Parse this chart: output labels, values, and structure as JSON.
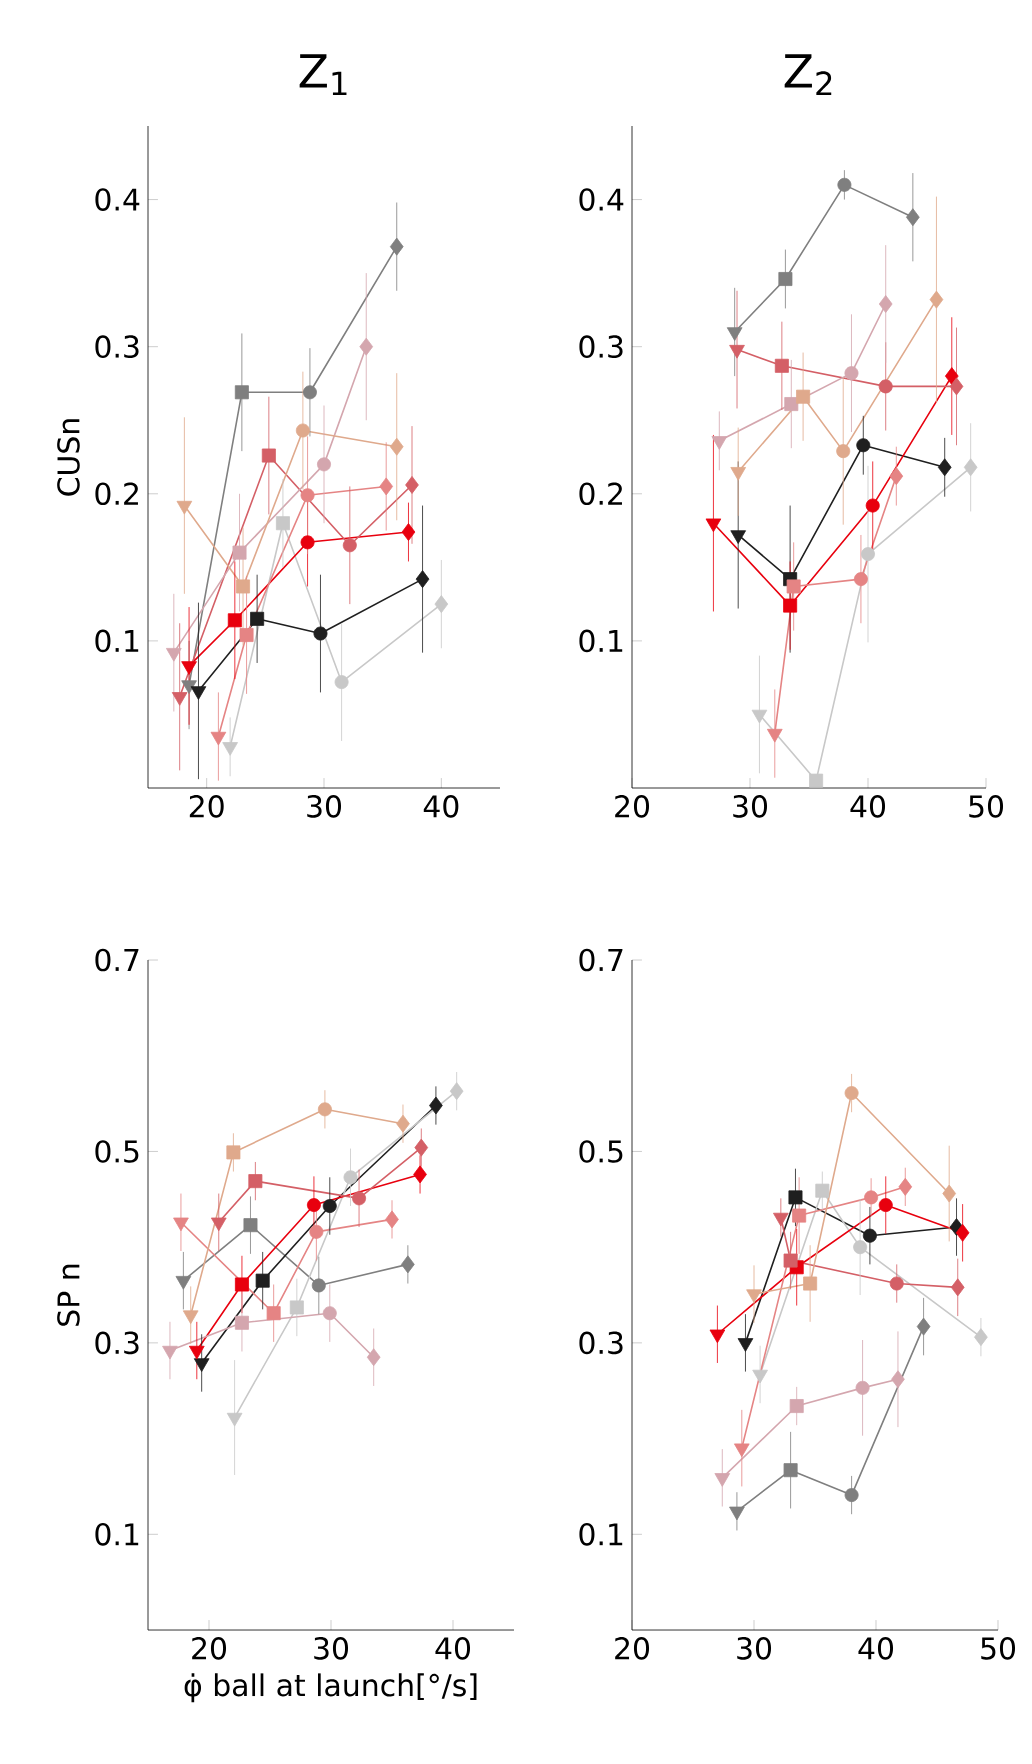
{
  "chart_data": [
    {
      "type": "line",
      "title": "Z$_{1}$",
      "ylabel": "CUSn",
      "xlim": [
        15,
        45
      ],
      "ylim": [
        0,
        0.45
      ],
      "xticks": [
        20,
        30,
        40
      ],
      "yticks": [
        0.1,
        0.2,
        0.3,
        0.4
      ],
      "series": [
        {
          "type": "line",
          "color": "#7f7f7f",
          "x": [
            18.5,
            23.0,
            28.8,
            36.2
          ],
          "values": [
            0.07,
            0.269,
            0.269,
            0.368
          ]
        },
        {
          "type": "line",
          "color": "#1f1f1f",
          "x": [
            19.3,
            24.3,
            29.7,
            38.4
          ],
          "values": [
            0.066,
            0.115,
            0.105,
            0.142
          ]
        },
        {
          "type": "line",
          "color": "#c8c8c8",
          "x": [
            22,
            26.5,
            31.5,
            40
          ],
          "values": [
            0.028,
            0.18,
            0.072,
            0.125
          ]
        },
        {
          "type": "line",
          "color": "#e8000e",
          "x": [
            18.5,
            22.4,
            28.6,
            37.2
          ],
          "values": [
            0.083,
            0.114,
            0.167,
            0.174
          ]
        },
        {
          "type": "line",
          "color": "#d45f66",
          "x": [
            17.7,
            25.3,
            32.2,
            37.5
          ],
          "values": [
            0.062,
            0.226,
            0.165,
            0.206
          ]
        },
        {
          "type": "line",
          "color": "#e58484",
          "x": [
            21,
            23.4,
            28.6,
            35.3
          ],
          "values": [
            0.035,
            0.104,
            0.199,
            0.205
          ]
        },
        {
          "type": "line",
          "color": "#d4a6ae",
          "x": [
            17.2,
            22.8,
            30,
            33.6
          ],
          "values": [
            0.092,
            0.16,
            0.22,
            0.3
          ]
        },
        {
          "type": "line",
          "color": "#dfa98c",
          "x": [
            18.1,
            23.1,
            28.2,
            36.2
          ],
          "values": [
            0.192,
            0.137,
            0.243,
            0.232
          ]
        },
        {
          "type": "scatter",
          "marker": "triangle",
          "x": [
            18.5,
            19.3,
            22,
            18.5,
            17.7,
            21,
            17.2,
            18.1
          ],
          "values": [
            0.07,
            0.066,
            0.028,
            0.083,
            0.062,
            0.035,
            0.092,
            0.192
          ],
          "colors": [
            "#7f7f7f",
            "#1f1f1f",
            "#c8c8c8",
            "#e8000e",
            "#d45f66",
            "#e58484",
            "#d4a6ae",
            "#dfa98c"
          ],
          "errors": [
            0.03,
            0.06,
            0.02,
            0.04,
            0.05,
            0.03,
            0.04,
            0.06
          ]
        },
        {
          "type": "scatter",
          "marker": "square",
          "x": [
            23.0,
            24.3,
            26.5,
            22.4,
            25.3,
            23.4,
            22.8,
            23.1
          ],
          "values": [
            0.269,
            0.115,
            0.18,
            0.114,
            0.226,
            0.104,
            0.16,
            0.137
          ],
          "colors": [
            "#7f7f7f",
            "#1f1f1f",
            "#c8c8c8",
            "#e8000e",
            "#d45f66",
            "#e58484",
            "#d4a6ae",
            "#dfa98c"
          ],
          "errors": [
            0.04,
            0.03,
            0.03,
            0.04,
            0.04,
            0.04,
            0.04,
            0.04
          ]
        },
        {
          "type": "scatter",
          "marker": "circle",
          "x": [
            28.8,
            29.7,
            31.5,
            28.6,
            32.2,
            28.6,
            30,
            28.2
          ],
          "values": [
            0.269,
            0.105,
            0.072,
            0.167,
            0.165,
            0.199,
            0.22,
            0.243
          ],
          "colors": [
            "#7f7f7f",
            "#1f1f1f",
            "#c8c8c8",
            "#e8000e",
            "#d45f66",
            "#e58484",
            "#d4a6ae",
            "#dfa98c"
          ],
          "errors": [
            0.03,
            0.04,
            0.04,
            0.03,
            0.04,
            0.04,
            0.04,
            0.04
          ]
        },
        {
          "type": "scatter",
          "marker": "diamond",
          "x": [
            36.2,
            38.4,
            40,
            37.2,
            37.5,
            35.3,
            33.6,
            36.2
          ],
          "values": [
            0.368,
            0.142,
            0.125,
            0.174,
            0.206,
            0.205,
            0.3,
            0.232
          ],
          "colors": [
            "#7f7f7f",
            "#1f1f1f",
            "#c8c8c8",
            "#e8000e",
            "#d45f66",
            "#e58484",
            "#d4a6ae",
            "#dfa98c"
          ],
          "errors": [
            0.03,
            0.05,
            0.03,
            0.02,
            0.04,
            0.03,
            0.05,
            0.05
          ]
        }
      ]
    },
    {
      "type": "line",
      "title": "Z$_{2}$",
      "xlim": [
        20,
        50
      ],
      "ylim": [
        0,
        0.45
      ],
      "xticks": [
        20,
        30,
        40,
        50
      ],
      "yticks": [
        0.1,
        0.2,
        0.3,
        0.4
      ],
      "series": [
        {
          "type": "line",
          "color": "#7f7f7f",
          "x": [
            28.7,
            33,
            38,
            43.8
          ],
          "values": [
            0.31,
            0.346,
            0.41,
            0.388
          ]
        },
        {
          "type": "line",
          "color": "#1f1f1f",
          "x": [
            29,
            33.4,
            39.6,
            46.5
          ],
          "values": [
            0.172,
            0.142,
            0.233,
            0.218
          ]
        },
        {
          "type": "line",
          "color": "#c8c8c8",
          "x": [
            30.8,
            35.6,
            40,
            48.7
          ],
          "values": [
            0.05,
            0.005,
            0.159,
            0.218
          ]
        },
        {
          "type": "line",
          "color": "#e8000e",
          "x": [
            26.9,
            33.4,
            40.4,
            47.1
          ],
          "values": [
            0.18,
            0.124,
            0.192,
            0.28
          ]
        },
        {
          "type": "line",
          "color": "#d45f66",
          "x": [
            28.9,
            32.7,
            41.5,
            47.5
          ],
          "values": [
            0.298,
            0.287,
            0.273,
            0.273
          ]
        },
        {
          "type": "line",
          "color": "#e58484",
          "x": [
            32.1,
            33.7,
            39.4,
            42.4
          ],
          "values": [
            0.037,
            0.137,
            0.142,
            0.212
          ]
        },
        {
          "type": "line",
          "color": "#d4a6ae",
          "x": [
            27.4,
            33.5,
            38.6,
            41.5
          ],
          "values": [
            0.236,
            0.261,
            0.282,
            0.329
          ]
        },
        {
          "type": "line",
          "color": "#dfa98c",
          "x": [
            29,
            34.5,
            37.9,
            45.8
          ],
          "values": [
            0.215,
            0.266,
            0.229,
            0.332
          ]
        },
        {
          "type": "scatter",
          "marker": "triangle",
          "x": [
            28.7,
            29,
            30.8,
            26.9,
            28.9,
            32.1,
            27.4,
            29
          ],
          "values": [
            0.31,
            0.172,
            0.05,
            0.18,
            0.298,
            0.037,
            0.236,
            0.215
          ],
          "colors": [
            "#7f7f7f",
            "#1f1f1f",
            "#c8c8c8",
            "#e8000e",
            "#d45f66",
            "#e58484",
            "#d4a6ae",
            "#dfa98c"
          ],
          "errors": [
            0.03,
            0.05,
            0.04,
            0.06,
            0.04,
            0.03,
            0.02,
            0.03
          ]
        },
        {
          "type": "scatter",
          "marker": "square",
          "x": [
            33,
            33.4,
            35.6,
            33.4,
            32.7,
            33.7,
            33.5,
            34.5
          ],
          "values": [
            0.346,
            0.142,
            0.005,
            0.124,
            0.287,
            0.137,
            0.261,
            0.266
          ],
          "colors": [
            "#7f7f7f",
            "#1f1f1f",
            "#c8c8c8",
            "#e8000e",
            "#d45f66",
            "#e58484",
            "#d4a6ae",
            "#dfa98c"
          ],
          "errors": [
            0.02,
            0.05,
            null,
            0.03,
            0.03,
            0.03,
            0.03,
            0.03
          ]
        },
        {
          "type": "scatter",
          "marker": "circle",
          "x": [
            38,
            39.6,
            40,
            40.4,
            41.5,
            39.4,
            38.6,
            37.9
          ],
          "values": [
            0.41,
            0.233,
            0.159,
            0.192,
            0.273,
            0.142,
            0.282,
            0.229
          ],
          "colors": [
            "#7f7f7f",
            "#1f1f1f",
            "#c8c8c8",
            "#e8000e",
            "#d45f66",
            "#e58484",
            "#d4a6ae",
            "#dfa98c"
          ],
          "errors": [
            0.01,
            0.02,
            0.06,
            0.03,
            0.03,
            0.03,
            0.04,
            0.05
          ]
        },
        {
          "type": "scatter",
          "marker": "diamond",
          "x": [
            43.8,
            46.5,
            48.7,
            47.1,
            47.5,
            42.4,
            41.5,
            45.8
          ],
          "values": [
            0.388,
            0.218,
            0.218,
            0.28,
            0.273,
            0.212,
            0.329,
            0.332
          ],
          "colors": [
            "#7f7f7f",
            "#1f1f1f",
            "#c8c8c8",
            "#e8000e",
            "#d45f66",
            "#e58484",
            "#d4a6ae",
            "#dfa98c"
          ],
          "errors": [
            0.03,
            0.02,
            0.03,
            0.04,
            0.04,
            0.02,
            0.04,
            0.07
          ]
        }
      ]
    },
    {
      "type": "line",
      "ylabel": "SP n",
      "xlabel": "φ̇ ball at launch[°/s]",
      "xlim": [
        15,
        45
      ],
      "ylim": [
        0,
        0.7
      ],
      "xticks": [
        20,
        30,
        40
      ],
      "yticks": [
        0.1,
        0.3,
        0.5,
        0.7
      ],
      "series": [
        {
          "type": "line",
          "color": "#7f7f7f",
          "x": [
            17.9,
            23.4,
            29,
            36.3
          ],
          "values": [
            0.365,
            0.423,
            0.36,
            0.382
          ]
        },
        {
          "type": "line",
          "color": "#1f1f1f",
          "x": [
            19.4,
            24.4,
            29.9,
            38.6
          ],
          "values": [
            0.279,
            0.365,
            0.443,
            0.548
          ]
        },
        {
          "type": "line",
          "color": "#c8c8c8",
          "x": [
            22.1,
            27.2,
            31.6,
            40.3
          ],
          "values": [
            0.222,
            0.337,
            0.473,
            0.563
          ]
        },
        {
          "type": "line",
          "color": "#e8000e",
          "x": [
            19,
            22.7,
            28.6,
            37.3
          ],
          "values": [
            0.292,
            0.361,
            0.444,
            0.476
          ]
        },
        {
          "type": "line",
          "color": "#d45f66",
          "x": [
            20.8,
            23.8,
            32.3,
            37.4
          ],
          "values": [
            0.426,
            0.469,
            0.451,
            0.504
          ]
        },
        {
          "type": "line",
          "color": "#e58484",
          "x": [
            17.7,
            25.3,
            28.8,
            35
          ],
          "values": [
            0.426,
            0.331,
            0.416,
            0.429
          ]
        },
        {
          "type": "line",
          "color": "#d4a6ae",
          "x": [
            16.8,
            22.7,
            29.9,
            33.5
          ],
          "values": [
            0.292,
            0.321,
            0.331,
            0.285
          ]
        },
        {
          "type": "line",
          "color": "#dfa98c",
          "x": [
            18.5,
            22,
            29.5,
            35.9
          ],
          "values": [
            0.329,
            0.499,
            0.544,
            0.529
          ]
        },
        {
          "type": "scatter",
          "marker": "triangle",
          "x": [
            17.9,
            19.4,
            22.1,
            19,
            20.8,
            17.7,
            16.8,
            18.5
          ],
          "values": [
            0.365,
            0.279,
            0.222,
            0.292,
            0.426,
            0.426,
            0.292,
            0.329
          ],
          "colors": [
            "#7f7f7f",
            "#1f1f1f",
            "#c8c8c8",
            "#e8000e",
            "#d45f66",
            "#e58484",
            "#d4a6ae",
            "#dfa98c"
          ],
          "errors": [
            0.03,
            0.03,
            0.06,
            0.03,
            0.03,
            0.03,
            0.03,
            0.03
          ]
        },
        {
          "type": "scatter",
          "marker": "square",
          "x": [
            23.4,
            24.4,
            27.2,
            22.7,
            23.8,
            25.3,
            22.7,
            22
          ],
          "values": [
            0.423,
            0.365,
            0.337,
            0.361,
            0.469,
            0.331,
            0.321,
            0.499
          ],
          "colors": [
            "#7f7f7f",
            "#1f1f1f",
            "#c8c8c8",
            "#e8000e",
            "#d45f66",
            "#e58484",
            "#d4a6ae",
            "#dfa98c"
          ],
          "errors": [
            0.03,
            0.03,
            0.03,
            0.03,
            0.02,
            0.03,
            0.03,
            0.02
          ]
        },
        {
          "type": "scatter",
          "marker": "circle",
          "x": [
            29,
            29.9,
            31.6,
            28.6,
            32.3,
            28.8,
            29.9,
            29.5
          ],
          "values": [
            0.36,
            0.443,
            0.473,
            0.444,
            0.451,
            0.416,
            0.331,
            0.544
          ],
          "colors": [
            "#7f7f7f",
            "#1f1f1f",
            "#c8c8c8",
            "#e8000e",
            "#d45f66",
            "#e58484",
            "#d4a6ae",
            "#dfa98c"
          ],
          "errors": [
            0.03,
            0.03,
            0.03,
            0.03,
            0.03,
            0.03,
            0.03,
            0.02
          ]
        },
        {
          "type": "scatter",
          "marker": "diamond",
          "x": [
            36.3,
            38.6,
            40.3,
            37.3,
            37.4,
            35,
            33.5,
            35.9
          ],
          "values": [
            0.382,
            0.548,
            0.563,
            0.476,
            0.504,
            0.429,
            0.285,
            0.529
          ],
          "colors": [
            "#7f7f7f",
            "#1f1f1f",
            "#c8c8c8",
            "#e8000e",
            "#d45f66",
            "#e58484",
            "#d4a6ae",
            "#dfa98c"
          ],
          "errors": [
            0.02,
            0.02,
            0.02,
            0.02,
            0.02,
            0.02,
            0.03,
            0.02
          ]
        }
      ]
    },
    {
      "type": "line",
      "xlim": [
        20,
        50
      ],
      "ylim": [
        0,
        0.7
      ],
      "xticks": [
        20,
        30,
        40,
        50
      ],
      "yticks": [
        0.1,
        0.3,
        0.5,
        0.7
      ],
      "series": [
        {
          "type": "line",
          "color": "#7f7f7f",
          "x": [
            28.6,
            33,
            38,
            43.9
          ],
          "values": [
            0.124,
            0.167,
            0.141,
            0.317
          ]
        },
        {
          "type": "line",
          "color": "#1f1f1f",
          "x": [
            29.3,
            33.4,
            39.5,
            46.6
          ],
          "values": [
            0.3,
            0.452,
            0.412,
            0.421
          ]
        },
        {
          "type": "line",
          "color": "#c8c8c8",
          "x": [
            30.5,
            35.6,
            38.7,
            48.6
          ],
          "values": [
            0.267,
            0.459,
            0.4,
            0.306
          ]
        },
        {
          "type": "line",
          "color": "#e8000e",
          "x": [
            27,
            33.5,
            40.8,
            47.1
          ],
          "values": [
            0.309,
            0.379,
            0.444,
            0.415
          ]
        },
        {
          "type": "line",
          "color": "#d45f66",
          "x": [
            32.2,
            33,
            41.7,
            46.7
          ],
          "values": [
            0.431,
            0.386,
            0.362,
            0.358
          ]
        },
        {
          "type": "line",
          "color": "#e58484",
          "x": [
            29,
            33.7,
            39.6,
            42.4
          ],
          "values": [
            0.19,
            0.433,
            0.452,
            0.463
          ]
        },
        {
          "type": "line",
          "color": "#d4a6ae",
          "x": [
            27.4,
            33.5,
            38.9,
            41.8
          ],
          "values": [
            0.159,
            0.234,
            0.253,
            0.262
          ]
        },
        {
          "type": "line",
          "color": "#dfa98c",
          "x": [
            30,
            34.6,
            38,
            46
          ],
          "values": [
            0.351,
            0.362,
            0.561,
            0.456
          ]
        },
        {
          "type": "scatter",
          "marker": "triangle",
          "x": [
            28.6,
            29.3,
            30.5,
            27,
            32.2,
            29,
            27.4,
            30
          ],
          "values": [
            0.124,
            0.3,
            0.267,
            0.309,
            0.431,
            0.19,
            0.159,
            0.351
          ],
          "colors": [
            "#7f7f7f",
            "#1f1f1f",
            "#c8c8c8",
            "#e8000e",
            "#d45f66",
            "#e58484",
            "#d4a6ae",
            "#dfa98c"
          ],
          "errors": [
            0.02,
            0.03,
            0.03,
            0.03,
            0.02,
            0.04,
            0.03,
            0.03
          ]
        },
        {
          "type": "scatter",
          "marker": "square",
          "x": [
            33,
            33.4,
            35.6,
            33.5,
            33,
            33.7,
            33.5,
            34.6
          ],
          "values": [
            0.167,
            0.452,
            0.459,
            0.379,
            0.386,
            0.433,
            0.234,
            0.362
          ],
          "colors": [
            "#7f7f7f",
            "#1f1f1f",
            "#c8c8c8",
            "#e8000e",
            "#d45f66",
            "#e58484",
            "#d4a6ae",
            "#dfa98c"
          ],
          "errors": [
            0.04,
            0.03,
            0.02,
            0.04,
            0.03,
            0.04,
            0.02,
            0.04
          ]
        },
        {
          "type": "scatter",
          "marker": "circle",
          "x": [
            38,
            39.5,
            38.7,
            40.8,
            41.7,
            39.6,
            38.9,
            38
          ],
          "values": [
            0.141,
            0.412,
            0.4,
            0.444,
            0.362,
            0.452,
            0.253,
            0.561
          ],
          "colors": [
            "#7f7f7f",
            "#1f1f1f",
            "#c8c8c8",
            "#e8000e",
            "#d45f66",
            "#e58484",
            "#d4a6ae",
            "#dfa98c"
          ],
          "errors": [
            0.02,
            0.03,
            0.05,
            0.03,
            0.02,
            0.02,
            0.05,
            0.02
          ]
        },
        {
          "type": "scatter",
          "marker": "diamond",
          "x": [
            43.9,
            46.6,
            48.6,
            47.1,
            46.7,
            42.4,
            41.8,
            46
          ],
          "values": [
            0.317,
            0.421,
            0.306,
            0.415,
            0.358,
            0.463,
            0.262,
            0.456
          ],
          "colors": [
            "#7f7f7f",
            "#1f1f1f",
            "#c8c8c8",
            "#e8000e",
            "#d45f66",
            "#e58484",
            "#d4a6ae",
            "#dfa98c"
          ],
          "errors": [
            0.03,
            0.03,
            0.02,
            0.03,
            0.03,
            0.02,
            0.05,
            0.05
          ]
        }
      ]
    }
  ]
}
